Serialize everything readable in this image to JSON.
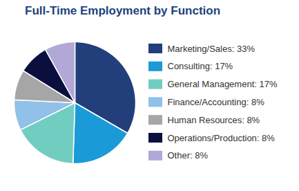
{
  "chart_data": {
    "type": "pie",
    "title": "Full-Time Employment by Function",
    "categories": [
      "Marketing/Sales: 33%",
      "Consulting: 17%",
      "General Management: 17%",
      "Finance/Accounting: 8%",
      "Human Resources: 8%",
      "Operations/Production: 8%",
      "Other: 8%"
    ],
    "values": [
      33,
      17,
      17,
      8,
      8,
      8,
      8
    ],
    "colors": [
      "#223f7c",
      "#1a9ad6",
      "#72cdc1",
      "#91c0e8",
      "#a6a6a6",
      "#0b0f3d",
      "#b1a8d8"
    ],
    "legend": "right"
  }
}
